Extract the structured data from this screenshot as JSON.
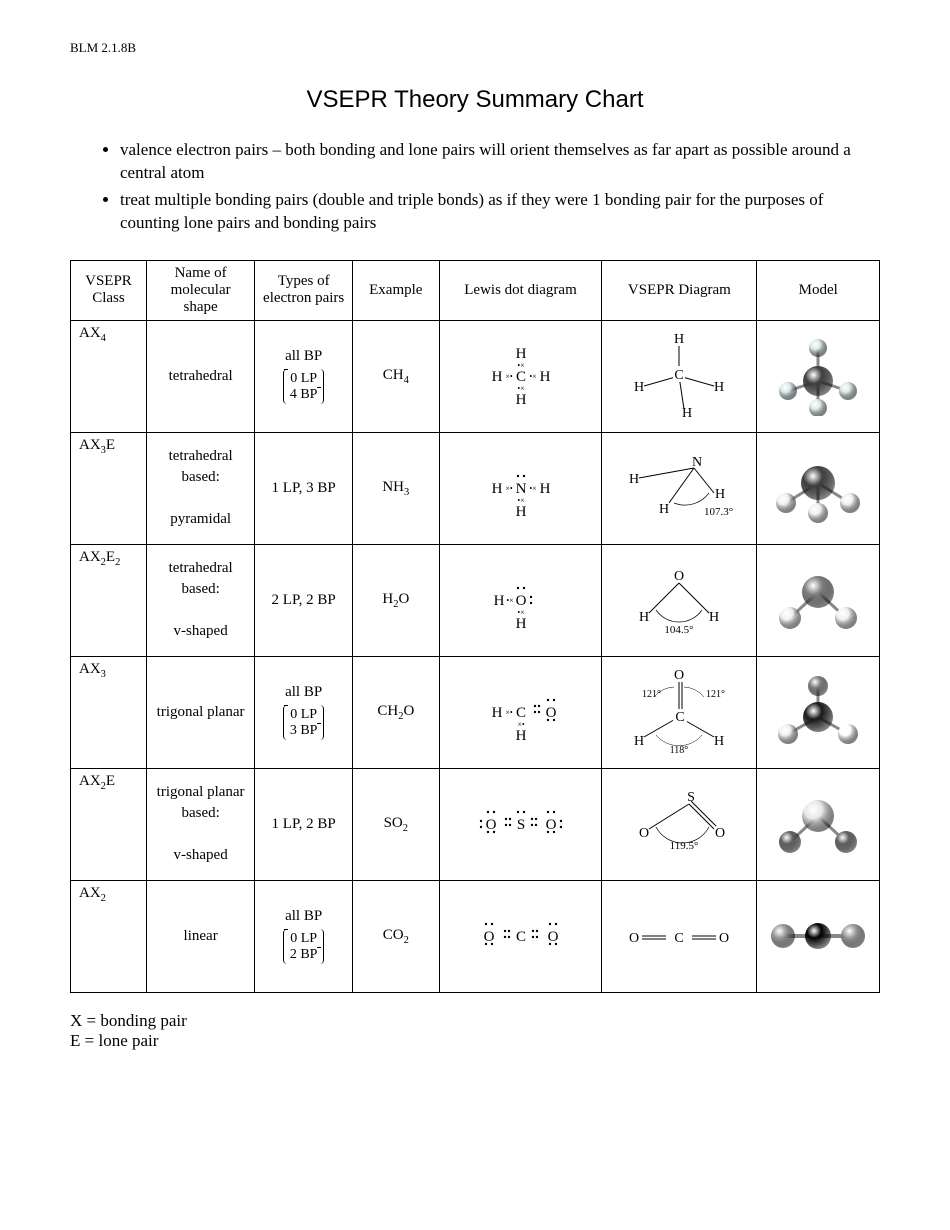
{
  "header_code": "BLM 2.1.8B",
  "title": "VSEPR Theory Summary Chart",
  "notes": [
    "valence electron pairs – both bonding and lone pairs will orient themselves as far apart as possible around a central atom",
    "treat multiple bonding pairs (double and triple bonds) as if they were 1 bonding pair for the purposes of counting lone pairs and bonding pairs"
  ],
  "columns": [
    "VSEPR Class",
    "Name of molecular shape",
    "Types of electron pairs",
    "Example",
    "Lewis dot diagram",
    "VSEPR Diagram",
    "Model"
  ],
  "rows": [
    {
      "class_html": "AX<span class='sub'>4</span>",
      "shape": "tetrahedral",
      "pairs_top": "all BP",
      "pairs_lp": "0 LP",
      "pairs_bp": "4 BP",
      "example_html": "CH<span class='sub'>4</span>",
      "lewis": {
        "center": "C",
        "around": [
          "H",
          "H",
          "H",
          "H"
        ],
        "lone_on_center": 0
      },
      "diagram": {
        "type": "tetra",
        "center": "C",
        "labels": [
          "H",
          "H",
          "H",
          "H"
        ],
        "angle": ""
      },
      "model": {
        "type": "tetra",
        "center": "#404040",
        "outer": "#d8e8e8"
      }
    },
    {
      "class_html": "AX<span class='sub'>3</span>E",
      "shape": "tetrahedral based:<br><br>pyramidal",
      "pairs_top": "1 LP, 3 BP",
      "pairs_lp": "",
      "pairs_bp": "",
      "example_html": "NH<span class='sub'>3</span>",
      "lewis": {
        "center": "N",
        "around": [
          "H",
          "H",
          "H"
        ],
        "lone_on_center": 1
      },
      "diagram": {
        "type": "pyramidal",
        "center": "N",
        "labels": [
          "H",
          "H",
          "H"
        ],
        "angle": "107.3°"
      },
      "model": {
        "type": "pyramidal",
        "center": "#404040",
        "outer": "#f0f0f0"
      }
    },
    {
      "class_html": "AX<span class='sub'>2</span>E<span class='sub'>2</span>",
      "shape": "tetrahedral based:<br><br>v-shaped",
      "pairs_top": "2 LP, 2 BP",
      "pairs_lp": "",
      "pairs_bp": "",
      "example_html": "H<span class='sub'>2</span>O",
      "lewis": {
        "center": "O",
        "around": [
          "H",
          "H"
        ],
        "lone_on_center": 2
      },
      "diagram": {
        "type": "bent",
        "center": "O",
        "labels": [
          "H",
          "H"
        ],
        "angle": "104.5°"
      },
      "model": {
        "type": "bent",
        "center": "#808080",
        "outer": "#f0f0f0"
      }
    },
    {
      "class_html": "AX<span class='sub'>3</span>",
      "shape": "trigonal planar",
      "pairs_top": "all BP",
      "pairs_lp": "0 LP",
      "pairs_bp": "3 BP",
      "example_html": "CH<span class='sub'>2</span>O",
      "lewis": {
        "center": "C",
        "around": [
          "H",
          "H",
          "O"
        ],
        "lone_on_center": 0,
        "double": "O"
      },
      "diagram": {
        "type": "trigonal",
        "center": "C",
        "labels": [
          "O",
          "H",
          "H"
        ],
        "angles": [
          "121°",
          "121°",
          "118°"
        ]
      },
      "model": {
        "type": "trigonal",
        "center": "#1a1a1a",
        "outer": [
          "#808080",
          "#f0f0f0",
          "#ffffff"
        ]
      }
    },
    {
      "class_html": "AX<span class='sub'>2</span>E",
      "shape": "trigonal planar based:<br><br>v-shaped",
      "pairs_top": "1 LP, 2 BP",
      "pairs_lp": "",
      "pairs_bp": "",
      "example_html": "SO<span class='sub'>2</span>",
      "lewis": {
        "center": "S",
        "around": [
          "O",
          "O"
        ],
        "lone_on_center": 1,
        "outer_lone": 3
      },
      "diagram": {
        "type": "bent2",
        "center": "S",
        "labels": [
          "O",
          "O"
        ],
        "angle": "119.5°"
      },
      "model": {
        "type": "bent",
        "center": "#e8e8e8",
        "outer": "#606060"
      }
    },
    {
      "class_html": "AX<span class='sub'>2</span>",
      "shape": "linear",
      "pairs_top": "all BP",
      "pairs_lp": "0 LP",
      "pairs_bp": "2 BP",
      "example_html": "CO<span class='sub'>2</span>",
      "lewis": {
        "center": "C",
        "around": [
          "O",
          "O"
        ],
        "lone_on_center": 0,
        "outer_lone": 2,
        "linear": true
      },
      "diagram": {
        "type": "linear",
        "center": "C",
        "labels": [
          "O",
          "O"
        ]
      },
      "model": {
        "type": "linear",
        "center": "#000000",
        "outer": "#9a9a9a"
      }
    }
  ],
  "legend": [
    "X = bonding pair",
    "E = lone pair"
  ],
  "colors": {
    "border": "#000000",
    "bg": "#ffffff",
    "text": "#000000"
  }
}
